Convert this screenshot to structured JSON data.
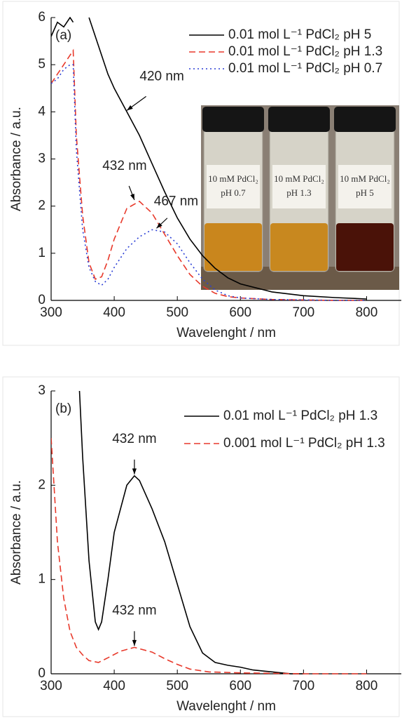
{
  "chart_data": [
    {
      "type": "line",
      "panel_label": "(a)",
      "x_label": "Wavelenght / nm",
      "y_label": "Absorbance / a.u.",
      "xlim": [
        300,
        855
      ],
      "xticks": [
        300,
        400,
        500,
        600,
        700,
        800
      ],
      "ylim": [
        0,
        6
      ],
      "yticks": [
        0,
        1,
        2,
        3,
        4,
        5,
        6
      ],
      "legend": "top right",
      "series": [
        {
          "name": "0.01 mol L⁻¹ PdCl₂ pH 5",
          "color": "#000000",
          "style": "solid",
          "x": [
            300,
            310,
            320,
            330,
            335,
            340,
            350,
            360,
            370,
            380,
            390,
            400,
            420,
            440,
            460,
            480,
            500,
            520,
            540,
            560,
            580,
            600,
            650,
            700,
            750,
            800
          ],
          "values": [
            5.6,
            5.9,
            5.8,
            6.0,
            5.9,
            null,
            null,
            6.0,
            5.6,
            5.2,
            4.8,
            4.5,
            4.0,
            3.5,
            2.9,
            2.3,
            1.75,
            1.3,
            0.95,
            0.68,
            0.48,
            0.35,
            0.18,
            0.1,
            0.06,
            0.03
          ]
        },
        {
          "name": "0.01 mol L⁻¹ PdCl₂ pH 1.3",
          "color": "#e8392b",
          "style": "dashed",
          "x": [
            300,
            310,
            320,
            330,
            335,
            340,
            350,
            360,
            370,
            380,
            390,
            400,
            420,
            440,
            460,
            480,
            500,
            520,
            540,
            560,
            580,
            600,
            650,
            700,
            750,
            800
          ],
          "values": [
            4.6,
            4.8,
            5.0,
            5.2,
            5.3,
            3.5,
            1.8,
            0.8,
            0.45,
            0.5,
            0.85,
            1.3,
            1.95,
            2.1,
            1.85,
            1.4,
            0.95,
            0.55,
            0.3,
            0.15,
            0.08,
            0.05,
            0.02,
            0.01,
            0,
            0
          ]
        },
        {
          "name": "0.01 mol L⁻¹ PdCl₂ pH 0.7",
          "color": "#2b3fd6",
          "style": "dotted",
          "x": [
            300,
            310,
            320,
            330,
            335,
            340,
            350,
            360,
            370,
            380,
            390,
            400,
            420,
            440,
            460,
            480,
            500,
            520,
            540,
            560,
            580,
            600,
            650,
            700,
            750,
            800
          ],
          "values": [
            4.6,
            4.7,
            4.9,
            5.0,
            5.0,
            3.2,
            1.5,
            0.7,
            0.4,
            0.32,
            0.45,
            0.7,
            1.1,
            1.35,
            1.5,
            1.45,
            1.2,
            0.8,
            0.45,
            0.22,
            0.1,
            0.05,
            0.02,
            0.01,
            0,
            0
          ]
        }
      ],
      "annotations": [
        {
          "text": "420 nm",
          "x": 420,
          "y": 4.0
        },
        {
          "text": "432 nm",
          "x": 432,
          "y": 2.1
        },
        {
          "text": "467 nm",
          "x": 467,
          "y": 1.5
        }
      ],
      "inset_labels": [
        [
          "10 mM PdCl₂",
          "pH 0.7"
        ],
        [
          "10 mM PdCl₂",
          "pH 1.3"
        ],
        [
          "10 mM PdCl₂",
          "pH 5"
        ]
      ]
    },
    {
      "type": "line",
      "panel_label": "(b)",
      "x_label": "Wavelenght / nm",
      "y_label": "Absorbance / a.u.",
      "xlim": [
        300,
        855
      ],
      "xticks": [
        300,
        400,
        500,
        600,
        700,
        800
      ],
      "ylim": [
        0,
        3
      ],
      "yticks": [
        0,
        1,
        2,
        3
      ],
      "legend": "top right",
      "series": [
        {
          "name": "0.01 mol L⁻¹ PdCl₂ pH 1.3",
          "color": "#000000",
          "style": "solid",
          "x": [
            345,
            350,
            360,
            370,
            375,
            380,
            390,
            400,
            420,
            432,
            440,
            460,
            480,
            500,
            520,
            540,
            560,
            580,
            600,
            620,
            650,
            680,
            700
          ],
          "values": [
            3.0,
            2.3,
            1.2,
            0.55,
            0.47,
            0.55,
            1.0,
            1.5,
            2.0,
            2.1,
            2.05,
            1.75,
            1.4,
            0.95,
            0.5,
            0.22,
            0.12,
            0.09,
            0.07,
            0.04,
            0.02,
            0.0,
            0.0
          ]
        },
        {
          "name": "0.001 mol L⁻¹ PdCl₂ pH 1.3",
          "color": "#e8392b",
          "style": "dashed",
          "x": [
            300,
            310,
            320,
            330,
            340,
            350,
            360,
            375,
            390,
            410,
            432,
            460,
            480,
            500,
            520,
            550,
            600,
            700,
            800
          ],
          "values": [
            2.5,
            1.4,
            0.8,
            0.45,
            0.28,
            0.2,
            0.14,
            0.12,
            0.17,
            0.24,
            0.28,
            0.23,
            0.16,
            0.1,
            0.05,
            0.02,
            0.01,
            0.0,
            0.0
          ]
        }
      ],
      "annotations": [
        {
          "text": "432 nm",
          "x": 432,
          "y": 2.1
        },
        {
          "text": "432 nm",
          "x": 432,
          "y": 0.28
        }
      ]
    }
  ]
}
